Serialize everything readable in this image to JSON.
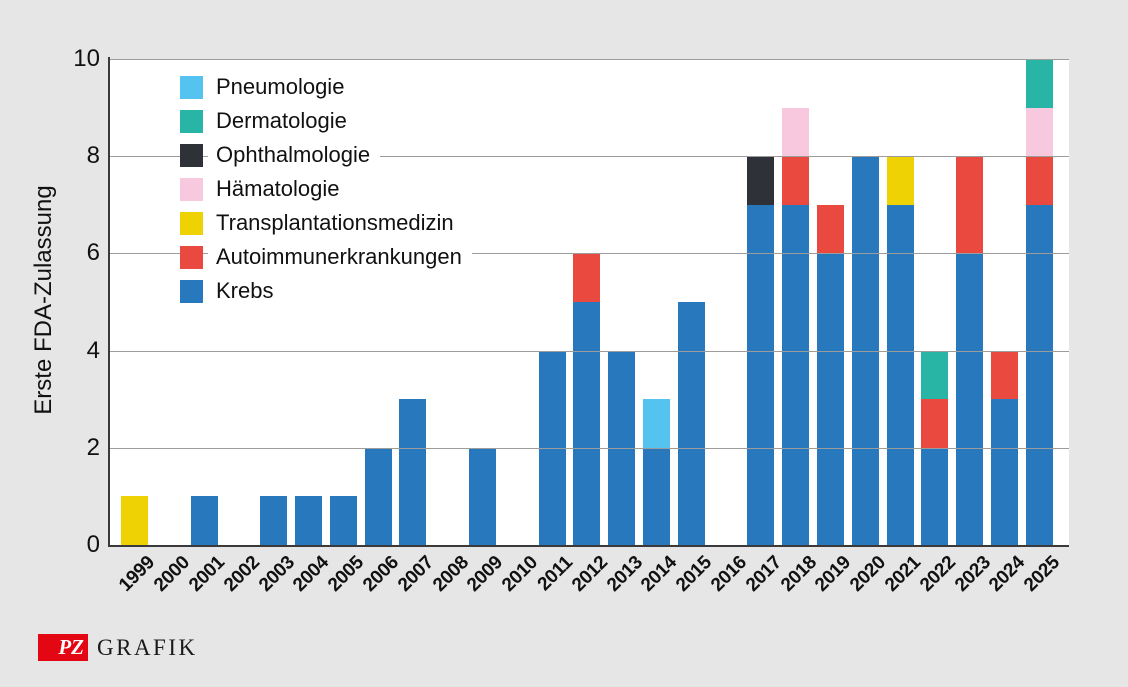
{
  "page": {
    "background_color": "#e6e6e6",
    "plot_background": "#ffffff",
    "axis_color": "#3a3a3c",
    "gridline_color": "#9c9c9c",
    "text_color": "#111111"
  },
  "footer": {
    "logo_pz": "PZ",
    "logo_text": "GRAFIK",
    "logo_red": "#e30613"
  },
  "chart_data": {
    "type": "bar",
    "variant": "stacked",
    "title": "",
    "xlabel": "",
    "ylabel": "Erste FDA-Zulassung",
    "ylim": [
      0,
      10
    ],
    "yticks": [
      0,
      2,
      4,
      6,
      8,
      10
    ],
    "grid": "horizontal gridlines at 2,4,6,8,10 drawn over bars",
    "legend_position": "top-left inside plot area",
    "categories": [
      "1999",
      "2000",
      "2001",
      "2002",
      "2003",
      "2004",
      "2005",
      "2006",
      "2007",
      "2008",
      "2009",
      "2010",
      "2011",
      "2012",
      "2013",
      "2014",
      "2015",
      "2016",
      "2017",
      "2018",
      "2019",
      "2020",
      "2021",
      "2022",
      "2023",
      "2024",
      "2025"
    ],
    "series": [
      {
        "name": "Pneumologie",
        "color": "#54c3ef",
        "values": [
          0,
          0,
          0,
          0,
          0,
          0,
          0,
          0,
          0,
          0,
          0,
          0,
          0,
          0,
          0,
          1,
          0,
          0,
          0,
          0,
          0,
          0,
          0,
          0,
          0,
          0,
          0
        ]
      },
      {
        "name": "Dermatologie",
        "color": "#28b5a6",
        "values": [
          0,
          0,
          0,
          0,
          0,
          0,
          0,
          0,
          0,
          0,
          0,
          0,
          0,
          0,
          0,
          0,
          0,
          0,
          0,
          0,
          0,
          0,
          0,
          1,
          0,
          0,
          1
        ]
      },
      {
        "name": "Ophthalmologie",
        "color": "#2e3137",
        "values": [
          0,
          0,
          0,
          0,
          0,
          0,
          0,
          0,
          0,
          0,
          0,
          0,
          0,
          0,
          0,
          0,
          0,
          0,
          1,
          0,
          0,
          0,
          0,
          0,
          0,
          0,
          0
        ]
      },
      {
        "name": "Hämatologie",
        "color": "#f7c8de",
        "values": [
          0,
          0,
          0,
          0,
          0,
          0,
          0,
          0,
          0,
          0,
          0,
          0,
          0,
          0,
          0,
          0,
          0,
          0,
          0,
          1,
          0,
          0,
          0,
          0,
          0,
          0,
          1
        ]
      },
      {
        "name": "Transplantationsmedizin",
        "color": "#efd204",
        "values": [
          1,
          0,
          0,
          0,
          0,
          0,
          0,
          0,
          0,
          0,
          0,
          0,
          0,
          0,
          0,
          0,
          0,
          0,
          0,
          0,
          0,
          0,
          1,
          0,
          0,
          0,
          0
        ]
      },
      {
        "name": "Autoimmunerkrankungen",
        "color": "#e9493f",
        "values": [
          0,
          0,
          0,
          0,
          0,
          0,
          0,
          0,
          0,
          0,
          0,
          0,
          0,
          1,
          0,
          0,
          0,
          0,
          0,
          1,
          1,
          0,
          0,
          1,
          2,
          1,
          1
        ]
      },
      {
        "name": "Krebs",
        "color": "#2878bd",
        "values": [
          0,
          0,
          1,
          0,
          1,
          1,
          1,
          2,
          3,
          0,
          2,
          0,
          4,
          5,
          4,
          2,
          5,
          0,
          7,
          7,
          6,
          8,
          7,
          2,
          6,
          3,
          7
        ]
      }
    ],
    "stack_order_bottom_to_top": [
      "Krebs",
      "Autoimmunerkrankungen",
      "Transplantationsmedizin",
      "Ophthalmologie",
      "Hämatologie",
      "Dermatologie",
      "Pneumologie"
    ]
  }
}
